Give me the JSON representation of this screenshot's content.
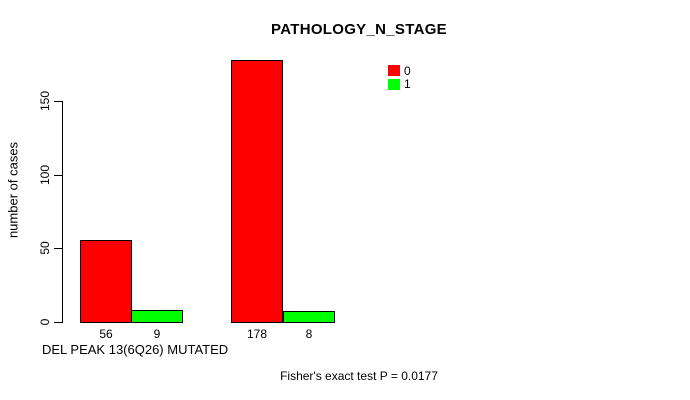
{
  "chart_data": {
    "type": "bar",
    "title": "PATHOLOGY_N_STAGE",
    "ylabel": "number of cases",
    "xlabel": "DEL PEAK 13(6Q26) MUTATED",
    "yticks": [
      "0",
      "50",
      "100",
      "150"
    ],
    "ylim": [
      0,
      185
    ],
    "grid": false,
    "legend_position": "top-right-inside",
    "legend": [
      {
        "label": "0",
        "color": "#ff0000"
      },
      {
        "label": "1",
        "color": "#00ff00"
      }
    ],
    "series": [
      {
        "name": "0",
        "color": "#ff0000",
        "values": [
          56,
          178
        ]
      },
      {
        "name": "1",
        "color": "#00ff00",
        "values": [
          9,
          8
        ]
      }
    ],
    "bars": [
      {
        "value": 56,
        "series": "0",
        "color": "#ff0000",
        "label": "56"
      },
      {
        "value": 9,
        "series": "1",
        "color": "#00ff00",
        "label": "9"
      },
      {
        "value": 178,
        "series": "0",
        "color": "#ff0000",
        "label": "178"
      },
      {
        "value": 8,
        "series": "1",
        "color": "#00ff00",
        "label": "8"
      }
    ],
    "annotation": "Fisher's exact test P = 0.0177",
    "axis_color": "#000000",
    "bar_border_color": "#000000"
  }
}
